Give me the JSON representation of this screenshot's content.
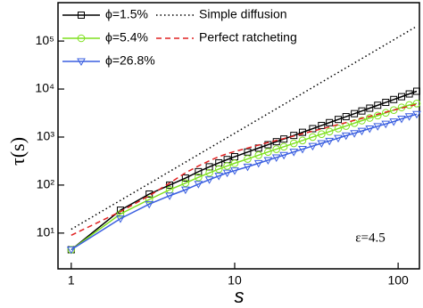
{
  "chart_data": {
    "type": "line",
    "log_x": true,
    "log_y": true,
    "xlabel": "s",
    "ylabel": "τ(s)",
    "annotation": "ε=4.5",
    "xlim": [
      0.83,
      135
    ],
    "ylim": [
      1.8,
      630000
    ],
    "xticks": [
      1,
      10,
      100
    ],
    "yticks": [
      {
        "value": 10,
        "label": "10¹"
      },
      {
        "value": 100,
        "label": "10²"
      },
      {
        "value": 1000,
        "label": "10³"
      },
      {
        "value": 10000,
        "label": "10⁴"
      },
      {
        "value": 100000,
        "label": "10⁵"
      }
    ],
    "x": [
      1,
      2,
      3,
      4,
      5,
      6,
      7,
      8,
      9,
      10,
      12,
      14,
      16,
      18,
      20,
      23,
      26,
      30,
      34,
      38,
      43,
      48,
      54,
      60,
      67,
      75,
      84,
      94,
      105,
      117,
      130
    ],
    "series": [
      {
        "name": "ϕ=1.5%",
        "color": "#000000",
        "marker": "square",
        "dash": "solid",
        "values": [
          4.5,
          30,
          65,
          100,
          140,
          190,
          240,
          290,
          340,
          390,
          488,
          589,
          693,
          801,
          911,
          1081,
          1256,
          1496,
          1744,
          1998,
          2325,
          2660,
          3073,
          3496,
          4001,
          4594,
          5275,
          6057,
          6934,
          7917,
          9000
        ]
      },
      {
        "name": "ϕ=5.4%",
        "color": "#7fe01f",
        "marker": "circle",
        "dash": "solid",
        "values": [
          4.5,
          25,
          50,
          80,
          110,
          145,
          180,
          215,
          250,
          285,
          350,
          420,
          490,
          560,
          630,
          740,
          850,
          1000,
          1150,
          1300,
          1500,
          1700,
          1950,
          2200,
          2500,
          2800,
          3200,
          3650,
          4150,
          4650,
          5000
        ]
      },
      {
        "name": "ϕ=26.8%",
        "color": "#3a5fe0",
        "marker": "triangle-down",
        "dash": "solid",
        "values": [
          4.5,
          20,
          40,
          60,
          80,
          105,
          130,
          155,
          180,
          200,
          240,
          285,
          330,
          375,
          420,
          490,
          560,
          650,
          740,
          830,
          950,
          1070,
          1200,
          1340,
          1500,
          1680,
          1880,
          2100,
          2400,
          2700,
          3000
        ]
      },
      {
        "name": "Simple diffusion",
        "color": "#000000",
        "marker": "none",
        "dash": "dotted",
        "values": [
          12,
          48,
          108,
          192,
          300,
          432,
          588,
          768,
          972,
          1200,
          1728,
          2352,
          3072,
          3888,
          4800,
          6348,
          8112,
          10800,
          13872,
          17328,
          22188,
          27648,
          34992,
          43200,
          53868,
          67500,
          84672,
          106032,
          132300,
          164268,
          202800
        ]
      },
      {
        "name": "Perfect ratcheting",
        "color": "#e02020",
        "marker": "none",
        "dash": "dashed",
        "values": [
          9,
          28,
          60,
          110,
          180,
          250,
          320,
          390,
          450,
          500,
          590,
          680,
          770,
          850,
          930,
          1050,
          1170,
          1330,
          1480,
          1630,
          1820,
          2000,
          2230,
          2450,
          2700,
          3000,
          3300,
          3650,
          4000,
          4400,
          4800
        ]
      }
    ]
  }
}
